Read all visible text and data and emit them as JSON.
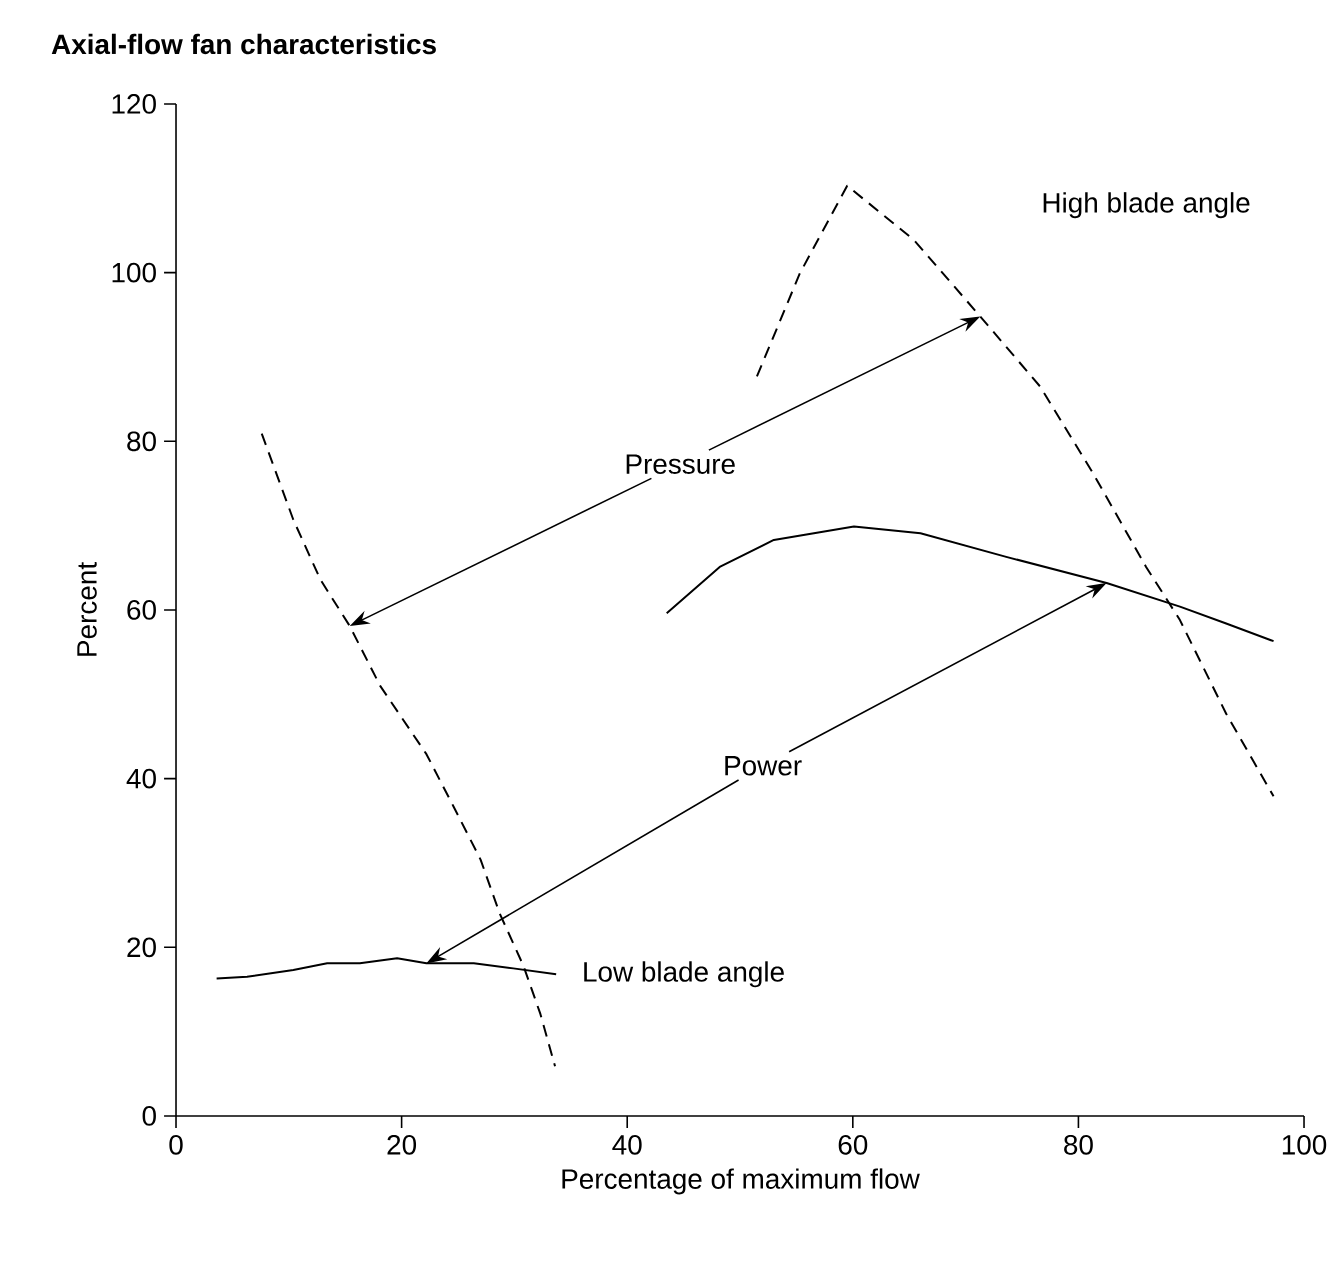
{
  "chart_data": {
    "type": "line",
    "title": "Axial-flow fan characteristics",
    "xlabel": "Percentage of maximum flow",
    "ylabel": "Percent",
    "xlim": [
      0,
      100
    ],
    "xticks": [
      0,
      20,
      40,
      60,
      80,
      100
    ],
    "ylim": [
      0,
      120
    ],
    "yticks": [
      0,
      20,
      40,
      60,
      80,
      100,
      120
    ],
    "grid": false,
    "marker": "none",
    "series": [
      {
        "color": "#000000",
        "line_style": "dashed",
        "x": [
          7.6,
          10.4,
          12.8,
          15.4,
          18.1,
          22.2,
          24.6,
          27,
          28.7,
          30.8,
          32.3,
          33.6
        ],
        "values": [
          80.9,
          70.7,
          63.6,
          58.1,
          51,
          42.9,
          36.7,
          30.4,
          24,
          17.8,
          12.1,
          5.9
        ]
      },
      {
        "color": "#000000",
        "line_style": "solid",
        "x": [
          3.6,
          6.3,
          10.4,
          13.4,
          16.3,
          19.6,
          22.2,
          26.4,
          29.9,
          33.7
        ],
        "values": [
          16.3,
          16.5,
          17.3,
          18.1,
          18.1,
          18.7,
          18.1,
          18.1,
          17.5,
          16.8
        ]
      },
      {
        "color": "#000000",
        "line_style": "dashed",
        "x": [
          51.5,
          55.3,
          59.5,
          65.4,
          71.3,
          76.6,
          81.3,
          86,
          89,
          93.1,
          97.3
        ],
        "values": [
          87.7,
          99.9,
          110.3,
          103.9,
          94.8,
          86.5,
          76.2,
          65.1,
          58.8,
          47.7,
          37.9
        ]
      },
      {
        "color": "#000000",
        "line_style": "solid",
        "x": [
          43.5,
          48.2,
          53,
          60.1,
          66,
          73.6,
          82.5,
          89,
          93.1,
          97.3
        ],
        "values": [
          59.6,
          65.1,
          68.3,
          69.9,
          69.1,
          66.3,
          63.2,
          60.4,
          58.4,
          56.3
        ]
      }
    ],
    "annotations": [
      {
        "text": "Pressure",
        "x": 15.4,
        "y": 58.1
      },
      {
        "text": "Power",
        "x": 22.2,
        "y": 18.1
      },
      "High blade angle",
      "Low blade angle"
    ]
  }
}
